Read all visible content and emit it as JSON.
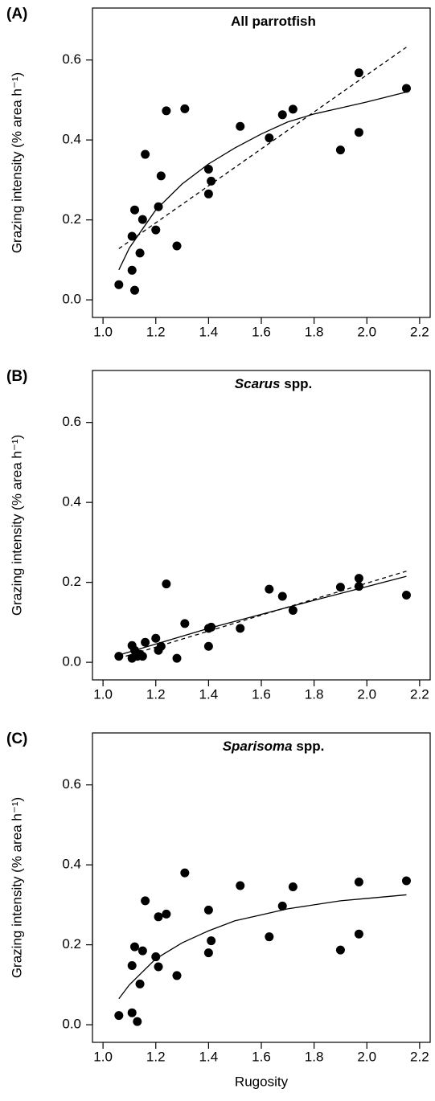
{
  "chart_data": [
    {
      "type": "scatter",
      "panel_label": "(A)",
      "title": "All parrotfish",
      "ylabel": "Grazing intensity (% area h⁻¹)",
      "xlim": [
        0.96,
        2.24
      ],
      "ylim": [
        -0.044,
        0.73
      ],
      "xticks": [
        {
          "value": 1,
          "label": "1.0"
        },
        1.2,
        1.4,
        1.6,
        1.8,
        {
          "value": 2,
          "label": "2.0"
        },
        2.2
      ],
      "yticks": [
        {
          "value": 0,
          "label": "0.0"
        },
        0.2,
        0.4,
        0.6
      ],
      "color": "#000000",
      "x": [
        1.06,
        1.11,
        1.11,
        1.12,
        1.12,
        1.14,
        1.15,
        1.16,
        1.2,
        1.21,
        1.22,
        1.24,
        1.28,
        1.31,
        1.4,
        1.4,
        1.41,
        1.52,
        1.63,
        1.68,
        1.72,
        1.9,
        1.97,
        1.97,
        2.15
      ],
      "values": [
        0.038,
        0.159,
        0.074,
        0.225,
        0.024,
        0.117,
        0.201,
        0.364,
        0.175,
        0.233,
        0.31,
        0.473,
        0.135,
        0.478,
        0.327,
        0.265,
        0.297,
        0.434,
        0.405,
        0.463,
        0.477,
        0.375,
        0.419,
        0.568,
        0.529
      ],
      "fits": [
        {
          "style": "solid",
          "x": [
            1.06,
            1.1,
            1.2,
            1.3,
            1.4,
            1.5,
            1.6,
            1.7,
            1.8,
            1.9,
            2.0,
            2.15
          ],
          "values": [
            0.075,
            0.13,
            0.225,
            0.29,
            0.34,
            0.38,
            0.415,
            0.445,
            0.465,
            0.48,
            0.495,
            0.52
          ]
        },
        {
          "style": "dashed",
          "x": [
            1.06,
            2.15
          ],
          "values": [
            0.128,
            0.632
          ]
        }
      ]
    },
    {
      "type": "scatter",
      "panel_label": "(B)",
      "title_italic": "Scarus",
      "title": "spp.",
      "ylabel": "Grazing intensity (% area h⁻¹)",
      "xlim": [
        0.96,
        2.24
      ],
      "ylim": [
        -0.044,
        0.73
      ],
      "xticks": [
        {
          "value": 1,
          "label": "1.0"
        },
        1.2,
        1.4,
        1.6,
        1.8,
        {
          "value": 2,
          "label": "2.0"
        },
        2.2
      ],
      "yticks": [
        {
          "value": 0,
          "label": "0.0"
        },
        0.2,
        0.4,
        0.6
      ],
      "color": "#000000",
      "x": [
        1.06,
        1.11,
        1.11,
        1.12,
        1.13,
        1.14,
        1.15,
        1.16,
        1.2,
        1.21,
        1.22,
        1.24,
        1.28,
        1.31,
        1.4,
        1.4,
        1.41,
        1.52,
        1.63,
        1.68,
        1.72,
        1.9,
        1.97,
        1.97,
        2.15
      ],
      "values": [
        0.015,
        0.01,
        0.042,
        0.03,
        0.015,
        0.02,
        0.015,
        0.05,
        0.06,
        0.03,
        0.04,
        0.196,
        0.01,
        0.097,
        0.085,
        0.04,
        0.088,
        0.085,
        0.183,
        0.165,
        0.13,
        0.188,
        0.21,
        0.19,
        0.168
      ],
      "fits": [
        {
          "style": "solid",
          "x": [
            1.06,
            1.4,
            1.8,
            2.15
          ],
          "values": [
            0.018,
            0.085,
            0.155,
            0.215
          ]
        },
        {
          "style": "dashed",
          "x": [
            1.06,
            2.15
          ],
          "values": [
            0.01,
            0.228
          ]
        }
      ]
    },
    {
      "type": "scatter",
      "panel_label": "(C)",
      "title_italic": "Sparisoma",
      "title": "spp.",
      "ylabel": "Grazing intensity (% area h⁻¹)",
      "xlabel": "Rugosity",
      "xlim": [
        0.96,
        2.24
      ],
      "ylim": [
        -0.044,
        0.73
      ],
      "xticks": [
        {
          "value": 1,
          "label": "1.0"
        },
        1.2,
        1.4,
        1.6,
        1.8,
        {
          "value": 2,
          "label": "2.0"
        },
        2.2
      ],
      "yticks": [
        {
          "value": 0,
          "label": "0.0"
        },
        0.2,
        0.4,
        0.6
      ],
      "color": "#000000",
      "x": [
        1.06,
        1.11,
        1.11,
        1.12,
        1.13,
        1.14,
        1.15,
        1.16,
        1.2,
        1.21,
        1.21,
        1.24,
        1.28,
        1.31,
        1.4,
        1.4,
        1.41,
        1.52,
        1.63,
        1.68,
        1.72,
        1.9,
        1.97,
        1.97,
        2.15
      ],
      "values": [
        0.023,
        0.148,
        0.03,
        0.195,
        0.008,
        0.102,
        0.185,
        0.31,
        0.17,
        0.145,
        0.27,
        0.277,
        0.123,
        0.38,
        0.18,
        0.287,
        0.21,
        0.348,
        0.22,
        0.297,
        0.345,
        0.187,
        0.227,
        0.357,
        0.36
      ],
      "fits": [
        {
          "style": "solid",
          "x": [
            1.06,
            1.1,
            1.2,
            1.3,
            1.4,
            1.5,
            1.6,
            1.7,
            1.8,
            1.9,
            2.0,
            2.15
          ],
          "values": [
            0.065,
            0.1,
            0.165,
            0.205,
            0.235,
            0.26,
            0.275,
            0.29,
            0.3,
            0.31,
            0.316,
            0.325
          ]
        }
      ]
    }
  ]
}
